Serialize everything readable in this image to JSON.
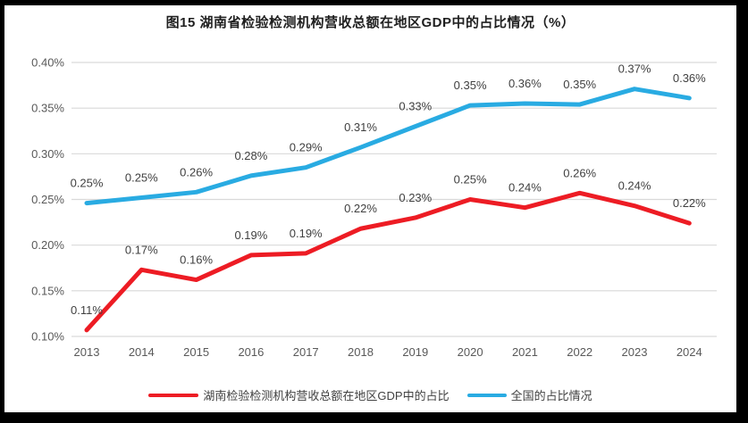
{
  "chart_data": {
    "type": "line",
    "title": "图15 湖南省检验检测机构营收总额在地区GDP中的占比情况（%）",
    "categories": [
      "2013",
      "2014",
      "2015",
      "2016",
      "2017",
      "2018",
      "2019",
      "2020",
      "2021",
      "2022",
      "2023",
      "2024"
    ],
    "y_ticks": [
      "0.10%",
      "0.15%",
      "0.20%",
      "0.25%",
      "0.30%",
      "0.35%",
      "0.40%"
    ],
    "ylim": [
      0.1,
      0.4
    ],
    "grid": true,
    "legend_position": "bottom",
    "colors": {
      "hunan_red": "#ED1C24",
      "national_blue": "#29ABE2",
      "gridline": "#D9D9D9",
      "axis_text": "#595959",
      "label_text": "#404040"
    },
    "series": [
      {
        "name": "湖南检验检测机构营收总额在地区GDP中的占比",
        "color": "#ED1C24",
        "values": [
          0.107,
          0.173,
          0.162,
          0.189,
          0.191,
          0.218,
          0.23,
          0.25,
          0.241,
          0.257,
          0.243,
          0.224
        ],
        "labels": [
          "0.11%",
          "0.17%",
          "0.16%",
          "0.19%",
          "0.19%",
          "0.22%",
          "0.23%",
          "0.25%",
          "0.24%",
          "0.26%",
          "0.24%",
          "0.22%"
        ]
      },
      {
        "name": "全国的占比情况",
        "color": "#29ABE2",
        "values": [
          0.246,
          0.252,
          0.258,
          0.276,
          0.285,
          0.307,
          0.33,
          0.353,
          0.355,
          0.354,
          0.371,
          0.361
        ],
        "labels": [
          "0.25%",
          "0.25%",
          "0.26%",
          "0.28%",
          "0.29%",
          "0.31%",
          "0.33%",
          "0.35%",
          "0.36%",
          "0.35%",
          "0.37%",
          "0.36%"
        ]
      }
    ]
  }
}
